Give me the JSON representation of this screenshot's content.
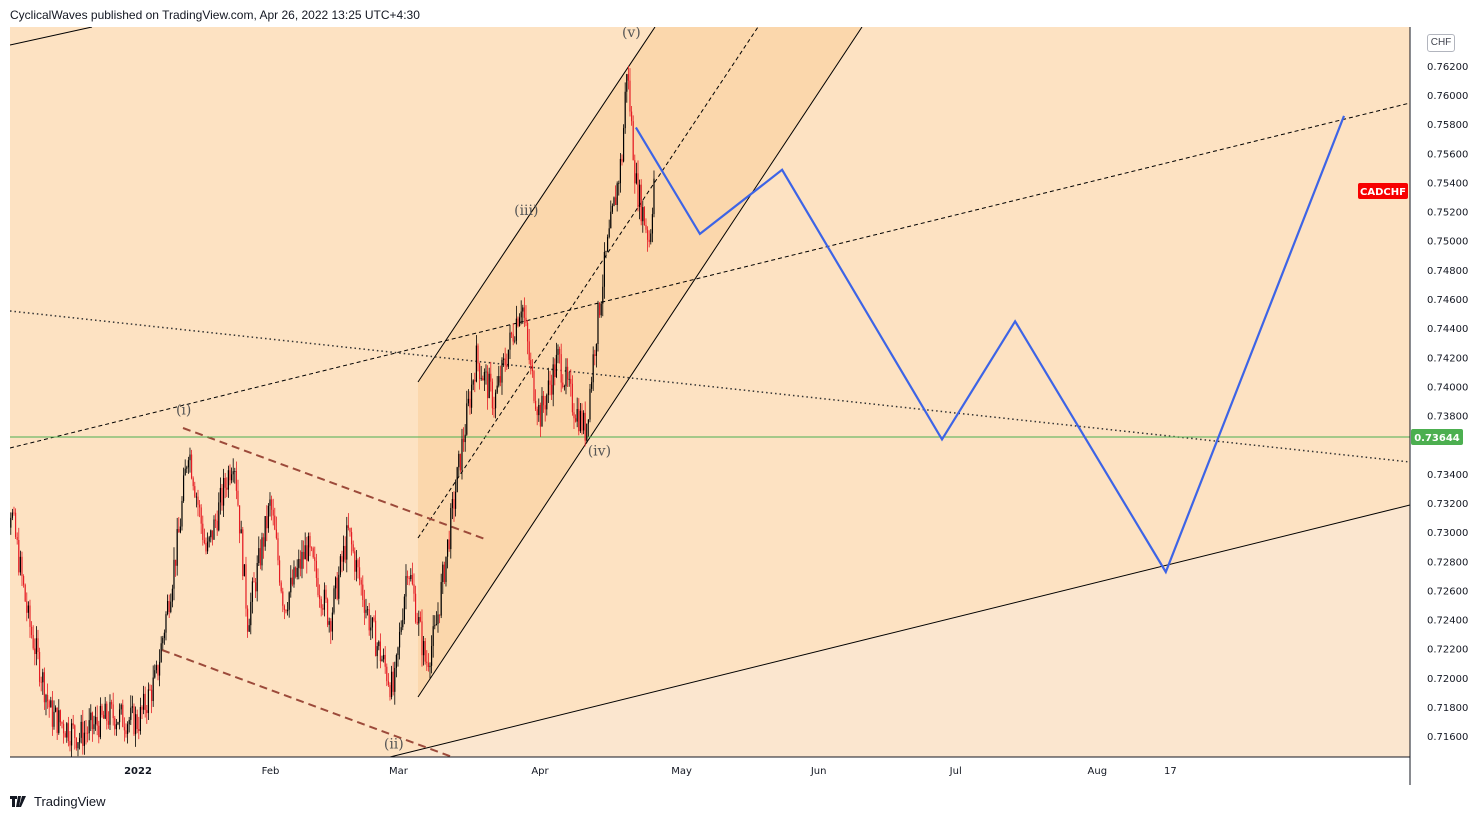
{
  "header": {
    "publisher": "CyclicalWaves published on TradingView.com, Apr 26, 2022 13:25 UTC+4:30"
  },
  "axis": {
    "currency_badge": "CHF"
  },
  "footer": {
    "brand": "TradingView",
    "logo_icon": "tradingview-logo-icon"
  },
  "colors": {
    "background": "#fde2c2",
    "lower_zone": "#fbe6cf",
    "channel_fill": "#fad3a4",
    "candle_up": "#000000",
    "candle_down": "#e51c23",
    "projection": "#3d64e6",
    "horizontal_level": "#4caf50",
    "symbol_label": "#f70000",
    "channel_dashed": "#9c4a3a"
  },
  "chart_data": {
    "type": "candlestick",
    "symbol": "CADCHF",
    "current_price_label": "0.73644",
    "horizontal_level": 0.73644,
    "y_ticks": [
      "0.71600",
      "0.71800",
      "0.72000",
      "0.72200",
      "0.72400",
      "0.72600",
      "0.72800",
      "0.73000",
      "0.73200",
      "0.73400",
      "0.73800",
      "0.74000",
      "0.74200",
      "0.74400",
      "0.74600",
      "0.74800",
      "0.75000",
      "0.75200",
      "0.75400",
      "0.75600",
      "0.75800",
      "0.76000",
      "0.76200"
    ],
    "ylim": [
      0.7146,
      0.7647
    ],
    "x_ticks": [
      "2022",
      "Feb",
      "Mar",
      "Apr",
      "May",
      "Jun",
      "Jul",
      "Aug",
      "17"
    ],
    "wave_labels": [
      "(i)",
      "(ii)",
      "(iii)",
      "(iv)",
      "(v)"
    ],
    "price_path": [
      {
        "date": "2021-12-03",
        "price": 0.7195
      },
      {
        "date": "2021-12-06",
        "price": 0.732
      },
      {
        "date": "2021-12-10",
        "price": 0.724
      },
      {
        "date": "2021-12-15",
        "price": 0.7175
      },
      {
        "date": "2021-12-21",
        "price": 0.716
      },
      {
        "date": "2021-12-28",
        "price": 0.7175
      },
      {
        "date": "2022-01-03",
        "price": 0.717
      },
      {
        "date": "2022-01-07",
        "price": 0.72
      },
      {
        "date": "2022-01-12",
        "price": 0.73
      },
      {
        "date": "2022-01-14",
        "price": 0.736
      },
      {
        "date": "2022-01-18",
        "price": 0.7285
      },
      {
        "date": "2022-01-21",
        "price": 0.732
      },
      {
        "date": "2022-01-24",
        "price": 0.7355
      },
      {
        "date": "2022-01-27",
        "price": 0.724
      },
      {
        "date": "2022-02-01",
        "price": 0.732
      },
      {
        "date": "2022-02-04",
        "price": 0.725
      },
      {
        "date": "2022-02-09",
        "price": 0.729
      },
      {
        "date": "2022-02-14",
        "price": 0.724
      },
      {
        "date": "2022-02-18",
        "price": 0.73
      },
      {
        "date": "2022-02-23",
        "price": 0.7235
      },
      {
        "date": "2022-02-28",
        "price": 0.719
      },
      {
        "date": "2022-03-03",
        "price": 0.728
      },
      {
        "date": "2022-03-07",
        "price": 0.721
      },
      {
        "date": "2022-03-09",
        "price": 0.723
      },
      {
        "date": "2022-03-14",
        "price": 0.734
      },
      {
        "date": "2022-03-18",
        "price": 0.742
      },
      {
        "date": "2022-03-22",
        "price": 0.739
      },
      {
        "date": "2022-03-28",
        "price": 0.746
      },
      {
        "date": "2022-03-30",
        "price": 0.741
      },
      {
        "date": "2022-04-01",
        "price": 0.738
      },
      {
        "date": "2022-04-05",
        "price": 0.742
      },
      {
        "date": "2022-04-08",
        "price": 0.739
      },
      {
        "date": "2022-04-11",
        "price": 0.737
      },
      {
        "date": "2022-04-13",
        "price": 0.743
      },
      {
        "date": "2022-04-15",
        "price": 0.748
      },
      {
        "date": "2022-04-19",
        "price": 0.756
      },
      {
        "date": "2022-04-20",
        "price": 0.762
      },
      {
        "date": "2022-04-22",
        "price": 0.754
      },
      {
        "date": "2022-04-25",
        "price": 0.75
      },
      {
        "date": "2022-04-26",
        "price": 0.7545
      }
    ],
    "projection": [
      {
        "date": "2022-04-22",
        "price": 0.7578
      },
      {
        "date": "2022-05-06",
        "price": 0.7505
      },
      {
        "date": "2022-05-24",
        "price": 0.7549
      },
      {
        "date": "2022-06-28",
        "price": 0.7364
      },
      {
        "date": "2022-07-14",
        "price": 0.7445
      },
      {
        "date": "2022-08-16",
        "price": 0.7273
      },
      {
        "date": "2022-09-24",
        "price": 0.7586
      }
    ]
  }
}
